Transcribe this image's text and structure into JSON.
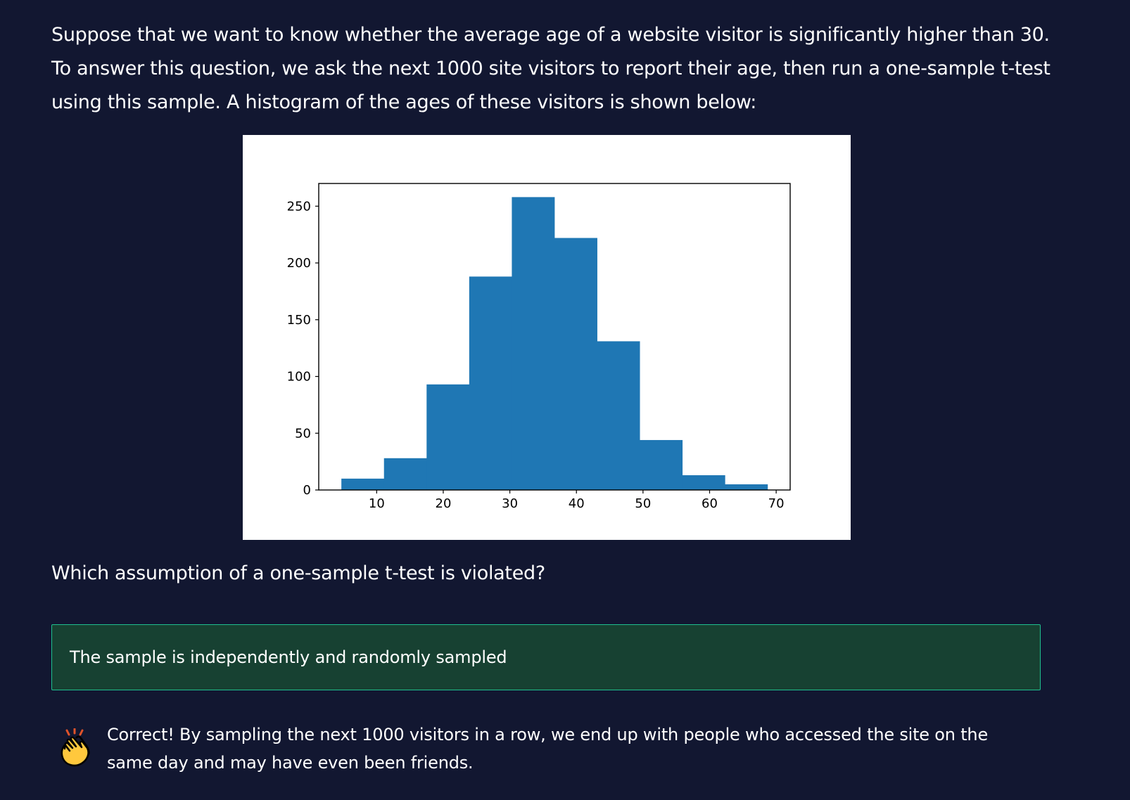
{
  "question": {
    "intro_lines": [
      "Suppose that we want to know whether the average age of a website visitor is significantly higher than 30.",
      "To answer this question, we ask the next 1000 site visitors to report their age, then run a one-sample t-test",
      "using this sample. A histogram of the ages of these visitors is shown below:"
    ],
    "prompt": "Which assumption of a one-sample t-test is violated?"
  },
  "selected_answer": {
    "label": "The sample is independently and randomly sampled",
    "state": "correct",
    "colors": {
      "background": "#174132",
      "border": "#1fbf8f"
    }
  },
  "feedback": {
    "icon": "clapping-hands-icon",
    "lines": [
      "Correct! By sampling the next 1000 visitors in a row, we end up with people who accessed the site on the",
      "same day and may have even been friends."
    ]
  },
  "chart_data": {
    "type": "bar",
    "title": "",
    "xlabel": "",
    "ylabel": "",
    "bin_edges": [
      4.7,
      11.1,
      17.5,
      23.9,
      30.3,
      36.7,
      43.1,
      49.5,
      55.9,
      62.3,
      68.7
    ],
    "values": [
      10,
      28,
      93,
      188,
      258,
      222,
      131,
      44,
      13,
      5
    ],
    "xlim": [
      1.3,
      72.1
    ],
    "ylim": [
      0,
      270
    ],
    "xticks": [
      10,
      20,
      30,
      40,
      50,
      60,
      70
    ],
    "yticks": [
      0,
      50,
      100,
      150,
      200,
      250
    ],
    "bar_color": "#1f77b4",
    "grid": false
  }
}
